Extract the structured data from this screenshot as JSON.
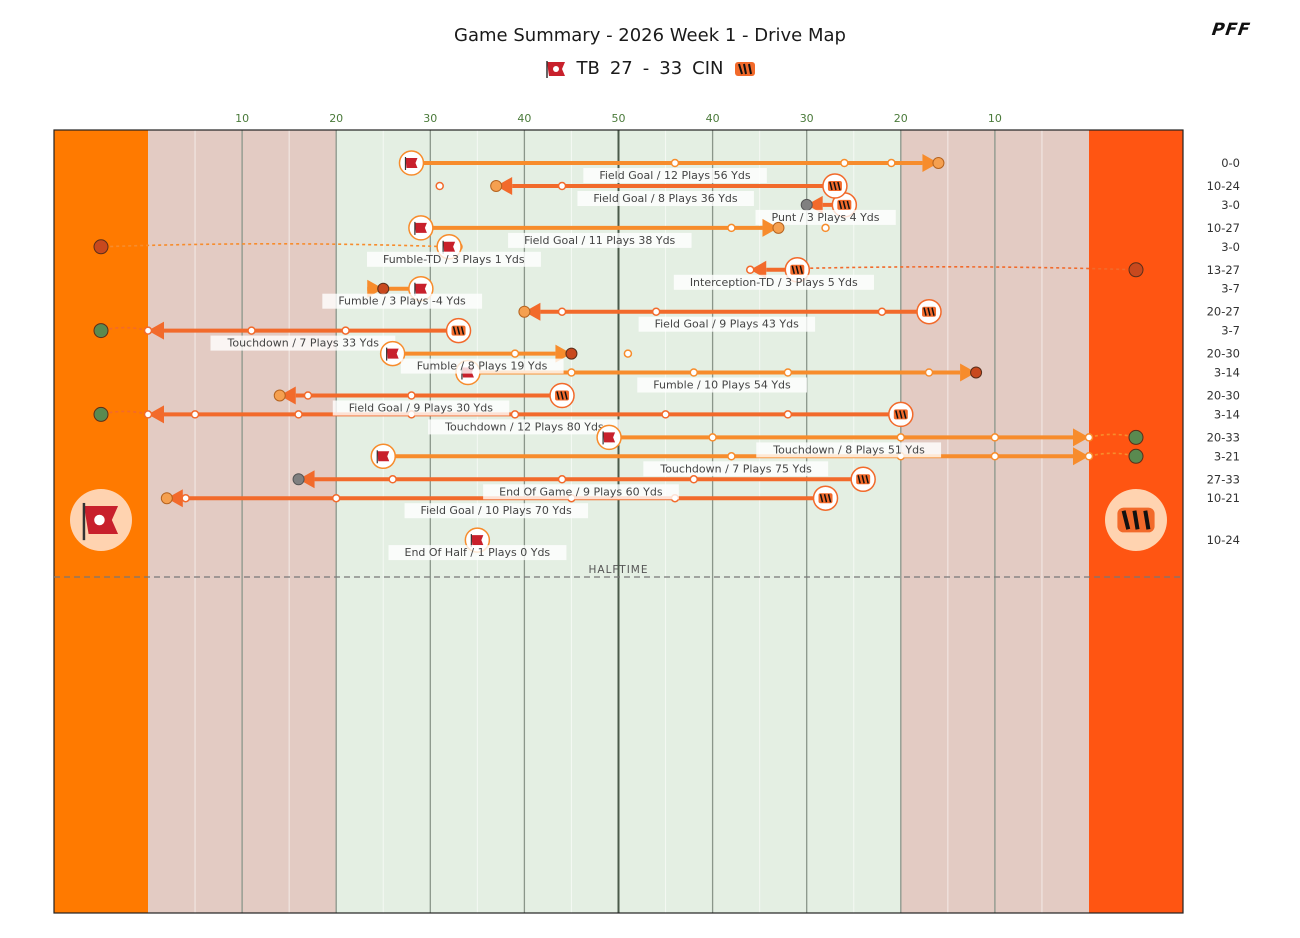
{
  "header": {
    "title": "Game Summary - 2026 Week 1 - Drive Map",
    "away_abbr": "TB",
    "away_score": "27",
    "separator": "-",
    "home_score": "33",
    "home_abbr": "CIN",
    "brand": "PFF"
  },
  "colors": {
    "tb_endzone": "#ff7a00",
    "cin_endzone": "#ff5512",
    "tb_drive": "#f78c2c",
    "cin_drive": "#f26a2b",
    "redzone_fill": "#e3cbc3",
    "midfield_fill": "#e4efe3",
    "result_td": "#5a8a50",
    "result_fg": "#f5a050",
    "result_turnover": "#c8491e",
    "result_neutral": "#808080"
  },
  "halftime_label": "HALFTIME",
  "chart_data": {
    "type": "drive-map",
    "title": "Game Summary - 2026 Week 1 - Drive Map",
    "x_axis": {
      "unit": "yard line",
      "ticks": [
        "10",
        "20",
        "30",
        "40",
        "50",
        "40",
        "30",
        "20",
        "10"
      ],
      "range_absolute": [
        0,
        100
      ]
    },
    "drives": [
      {
        "team": "TB",
        "label": "Field Goal / 12 Plays 56 Yds",
        "start": 28,
        "end": 84,
        "plays": [
          56,
          74,
          79
        ],
        "score": "0-0",
        "result": "FG",
        "half": 1
      },
      {
        "team": "CIN",
        "label": "Punt / 3 Plays 4 Yds",
        "start": 74,
        "end": 70,
        "plays": [],
        "score": "3-0",
        "result": "PUNT",
        "half": 1
      },
      {
        "team": "TB",
        "label": "Fumble-TD / 3 Plays 1 Yds",
        "start": 32,
        "end": 33,
        "plays": [],
        "score": "3-0",
        "result": "FUMBLE_TD",
        "half": 1
      },
      {
        "team": "TB",
        "label": "Fumble / 3 Plays -4 Yds",
        "start": 29,
        "end": 25,
        "plays": [],
        "score": "3-7",
        "result": "FUMBLE",
        "half": 1
      },
      {
        "team": "CIN",
        "label": "Touchdown / 7 Plays 33 Yds",
        "start": 33,
        "end": 0,
        "plays": [
          11,
          21
        ],
        "score": "3-7",
        "result": "TD",
        "half": 1
      },
      {
        "team": "TB",
        "label": "Fumble / 10 Plays 54 Yds",
        "start": 34,
        "end": 88,
        "plays": [
          45,
          58,
          68,
          83
        ],
        "score": "3-14",
        "result": "FUMBLE",
        "half": 1
      },
      {
        "team": "CIN",
        "label": "Touchdown / 12 Plays 80 Yds",
        "start": 80,
        "end": 0,
        "plays": [
          5,
          16,
          28,
          39,
          55,
          68
        ],
        "score": "3-14",
        "result": "TD",
        "half": 1
      },
      {
        "team": "TB",
        "label": "Touchdown / 7 Plays 75 Yds",
        "start": 25,
        "end": 100,
        "plays": [
          62,
          80,
          90
        ],
        "score": "3-21",
        "result": "TD",
        "half": 1
      },
      {
        "team": "CIN",
        "label": "Field Goal / 10 Plays 70 Yds",
        "start": 72,
        "end": 2,
        "plays": [
          4,
          20,
          45,
          56
        ],
        "score": "10-21",
        "result": "FG",
        "half": 1
      },
      {
        "team": "TB",
        "label": "End Of Half / 1 Plays 0 Yds",
        "start": 35,
        "end": 35,
        "plays": [],
        "score": "10-24",
        "result": "END",
        "half": 1
      },
      {
        "team": "CIN",
        "label": "Field Goal / 8 Plays 36 Yds",
        "start": 73,
        "end": 37,
        "plays": [
          31,
          44
        ],
        "score": "10-24",
        "result": "FG",
        "half": 2
      },
      {
        "team": "TB",
        "label": "Field Goal / 11 Plays 38 Yds",
        "start": 29,
        "end": 67,
        "plays": [
          62,
          72
        ],
        "score": "10-27",
        "result": "FG",
        "half": 2
      },
      {
        "team": "CIN",
        "label": "Interception-TD / 3 Plays 5 Yds",
        "start": 69,
        "end": 64,
        "plays": [],
        "score": "13-27",
        "result": "INT_TD",
        "half": 2
      },
      {
        "team": "CIN",
        "label": "Field Goal / 9 Plays 43 Yds",
        "start": 83,
        "end": 40,
        "plays": [
          44,
          54,
          78
        ],
        "score": "20-27",
        "result": "FG",
        "half": 2
      },
      {
        "team": "TB",
        "label": "Fumble / 8 Plays 19 Yds",
        "start": 26,
        "end": 45,
        "plays": [
          39,
          51
        ],
        "score": "20-30",
        "result": "FUMBLE",
        "half": 2
      },
      {
        "team": "CIN",
        "label": "Field Goal / 9 Plays 30 Yds",
        "start": 44,
        "end": 14,
        "plays": [
          17,
          28
        ],
        "score": "20-30",
        "result": "FG",
        "half": 2
      },
      {
        "team": "TB",
        "label": "Touchdown / 8 Plays 51 Yds",
        "start": 49,
        "end": 100,
        "plays": [
          60,
          80,
          90
        ],
        "score": "20-33",
        "result": "TD",
        "half": 2
      },
      {
        "team": "CIN",
        "label": "End Of Game / 9 Plays 60 Yds",
        "start": 76,
        "end": 16,
        "plays": [
          26,
          44,
          58
        ],
        "score": "27-33",
        "result": "END",
        "half": 2
      }
    ]
  }
}
